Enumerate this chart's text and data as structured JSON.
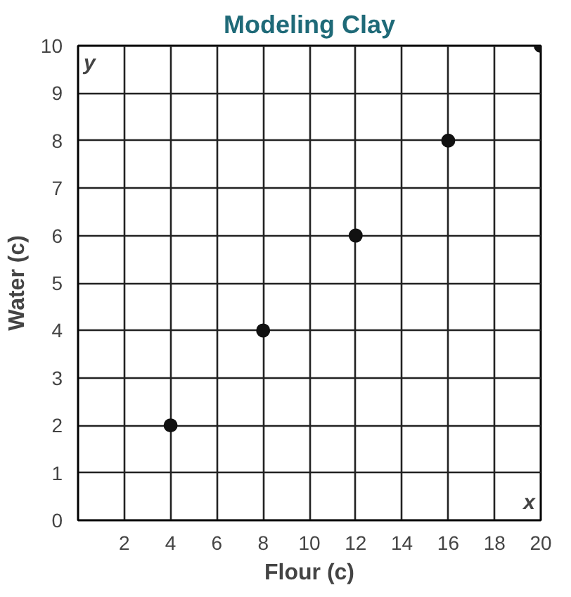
{
  "chart_data": {
    "type": "scatter",
    "title": "Modeling Clay",
    "xlabel": "Flour (c)",
    "ylabel": "Water (c)",
    "x": [
      4,
      8,
      12,
      16,
      20
    ],
    "series": [
      {
        "color": "#111111",
        "values": [
          2,
          4,
          6,
          8,
          10
        ]
      }
    ],
    "xlim": [
      0,
      20
    ],
    "ylim": [
      0,
      10
    ],
    "xticks": [
      2,
      4,
      6,
      8,
      10,
      12,
      14,
      16,
      18,
      20
    ],
    "yticks": [
      0,
      1,
      2,
      3,
      4,
      5,
      6,
      7,
      8,
      9,
      10
    ],
    "grid": true,
    "marker": "circle",
    "annotations": [
      "y",
      "x"
    ]
  }
}
